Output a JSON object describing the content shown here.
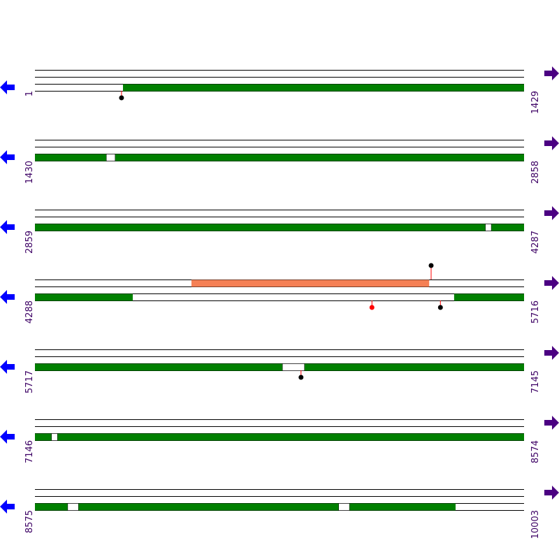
{
  "colors": {
    "line": "#000000",
    "feature_green": "#008000",
    "feature_salmon": "#f58055",
    "label_text": "#3c0064",
    "arrow_left": "#0000ff",
    "arrow_right": "#4b0082",
    "pin_stem": "#ff0000",
    "pin_black": "#000000",
    "pin_red": "#ff0000",
    "gap_fill": "#ffffff"
  },
  "icons": {
    "left_arrow": "left-arrow-icon",
    "right_arrow": "right-arrow-icon"
  },
  "rows": [
    {
      "start": "1",
      "end": "1429",
      "features": [
        {
          "track": 3,
          "from": 0.18,
          "to": 1.0,
          "color": "green"
        }
      ],
      "gaps": [],
      "pins": [
        {
          "pos": 0.177,
          "side": "below",
          "color": "black"
        }
      ]
    },
    {
      "start": "1430",
      "end": "2858",
      "features": [
        {
          "track": 3,
          "from": 0.0,
          "to": 1.0,
          "color": "green"
        }
      ],
      "gaps": [
        {
          "track": 3,
          "from": 0.146,
          "to": 0.164
        }
      ],
      "pins": []
    },
    {
      "start": "2859",
      "end": "4287",
      "features": [
        {
          "track": 3,
          "from": 0.0,
          "to": 1.0,
          "color": "green"
        }
      ],
      "gaps": [
        {
          "track": 3,
          "from": 0.921,
          "to": 0.933
        }
      ],
      "pins": []
    },
    {
      "start": "4288",
      "end": "5716",
      "features": [
        {
          "track": 1,
          "from": 0.32,
          "to": 0.806,
          "color": "salmon"
        },
        {
          "track": 3,
          "from": 0.0,
          "to": 0.2,
          "color": "green"
        },
        {
          "track": 3,
          "from": 0.857,
          "to": 1.0,
          "color": "green"
        }
      ],
      "gaps": [],
      "pins": [
        {
          "pos": 0.81,
          "side": "above",
          "color": "black"
        },
        {
          "pos": 0.689,
          "side": "below",
          "color": "red"
        },
        {
          "pos": 0.829,
          "side": "below",
          "color": "black"
        }
      ]
    },
    {
      "start": "5717",
      "end": "7145",
      "features": [
        {
          "track": 3,
          "from": 0.0,
          "to": 1.0,
          "color": "green"
        }
      ],
      "gaps": [
        {
          "track": 3,
          "from": 0.506,
          "to": 0.551
        }
      ],
      "pins": [
        {
          "pos": 0.544,
          "side": "below",
          "color": "black"
        }
      ]
    },
    {
      "start": "7146",
      "end": "8574",
      "features": [
        {
          "track": 3,
          "from": 0.0,
          "to": 1.0,
          "color": "green"
        }
      ],
      "gaps": [
        {
          "track": 3,
          "from": 0.034,
          "to": 0.046
        }
      ],
      "pins": []
    },
    {
      "start": "8575",
      "end": "10003",
      "features": [
        {
          "track": 3,
          "from": 0.0,
          "to": 0.86,
          "color": "green"
        }
      ],
      "gaps": [
        {
          "track": 3,
          "from": 0.067,
          "to": 0.089
        },
        {
          "track": 3,
          "from": 0.621,
          "to": 0.643
        }
      ],
      "pins": []
    }
  ]
}
